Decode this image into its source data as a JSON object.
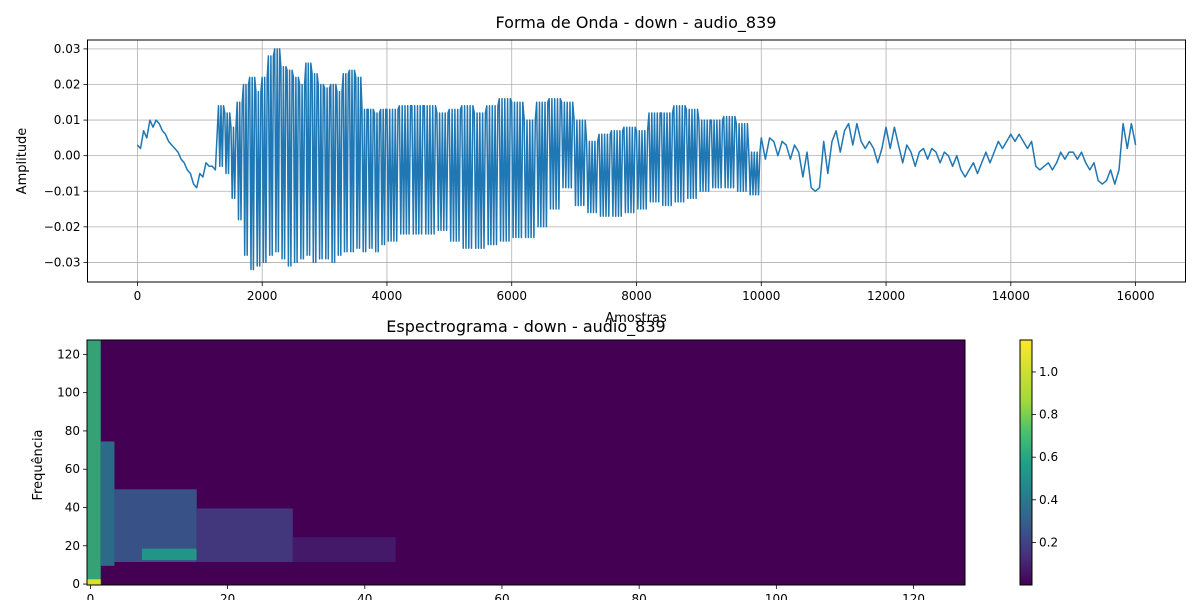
{
  "chart_data": [
    {
      "type": "line",
      "title": "Forma de Onda - down - audio_839",
      "xlabel": "Amostras",
      "ylabel": "Amplitude",
      "xlim": [
        -800,
        16800
      ],
      "ylim": [
        -0.0355,
        0.0325
      ],
      "grid": true,
      "line_color": "#1f77b4",
      "x_ticks": [
        0,
        2000,
        4000,
        6000,
        8000,
        10000,
        12000,
        14000,
        16000
      ],
      "x_tick_labels": [
        "0",
        "2000",
        "4000",
        "6000",
        "8000",
        "10000",
        "12000",
        "14000",
        "16000"
      ],
      "y_ticks": [
        -0.03,
        -0.02,
        -0.01,
        0.0,
        0.01,
        0.02,
        0.03
      ],
      "y_tick_labels": [
        "−0.03",
        "−0.02",
        "−0.01",
        "0.00",
        "0.01",
        "0.02",
        "0.03"
      ],
      "series": [
        {
          "x": [
            0,
            100,
            200,
            300,
            400,
            500,
            600,
            700,
            800,
            900,
            1000,
            1100,
            1200,
            1300,
            1400,
            1500,
            1600,
            1700,
            1800,
            1900,
            2000,
            2100,
            2200,
            2300,
            2400,
            2500,
            2600,
            2700,
            2800,
            2900,
            3000,
            3100,
            3200,
            3300,
            3400,
            3500,
            3600,
            3700,
            3800,
            3900,
            4000,
            4200,
            4400,
            4600,
            4800,
            5000,
            5200,
            5400,
            5600,
            5800,
            6000,
            6200,
            6400,
            6600,
            6800,
            7000,
            7200,
            7400,
            7600,
            7800,
            8000,
            8200,
            8400,
            8600,
            8800,
            9000,
            9200,
            9400,
            9600,
            9800,
            10000,
            10200,
            10400,
            10600,
            10800,
            11000,
            11200,
            11400,
            11600,
            11800,
            12000,
            12200,
            12400,
            12600,
            12800,
            13000,
            13200,
            13400,
            13600,
            13800,
            14000,
            14200,
            14400,
            14600,
            14800,
            15000,
            15200,
            15400,
            15600,
            15800,
            16000
          ],
          "min": [
            0.002,
            0.005,
            0.008,
            0.009,
            0.006,
            0.003,
            0.001,
            -0.002,
            -0.005,
            -0.009,
            -0.006,
            -0.003,
            -0.004,
            -0.003,
            -0.005,
            -0.012,
            -0.018,
            -0.028,
            -0.032,
            -0.031,
            -0.03,
            -0.028,
            -0.027,
            -0.029,
            -0.031,
            -0.03,
            -0.029,
            -0.028,
            -0.03,
            -0.029,
            -0.029,
            -0.03,
            -0.028,
            -0.027,
            -0.027,
            -0.026,
            -0.027,
            -0.026,
            -0.027,
            -0.025,
            -0.024,
            -0.022,
            -0.022,
            -0.022,
            -0.021,
            -0.024,
            -0.026,
            -0.026,
            -0.025,
            -0.024,
            -0.023,
            -0.023,
            -0.02,
            -0.015,
            -0.009,
            -0.014,
            -0.016,
            -0.017,
            -0.017,
            -0.016,
            -0.015,
            -0.013,
            -0.014,
            -0.013,
            -0.012,
            -0.01,
            -0.009,
            -0.009,
            -0.01,
            -0.011,
            -0.001,
            0.0,
            -0.001,
            -0.006,
            -0.01,
            -0.005,
            0.001,
            0.003,
            0.002,
            -0.002,
            0.002,
            -0.002,
            -0.003,
            -0.001,
            -0.002,
            -0.003,
            -0.006,
            -0.005,
            -0.002,
            0.002,
            0.004,
            0.002,
            -0.004,
            -0.004,
            -0.001,
            -0.001,
            -0.004,
            -0.008,
            -0.008,
            0.002,
            0.001
          ],
          "max": [
            0.003,
            0.007,
            0.01,
            0.01,
            0.007,
            0.004,
            0.002,
            -0.001,
            -0.004,
            -0.008,
            -0.005,
            -0.002,
            -0.003,
            0.014,
            0.012,
            0.008,
            0.015,
            0.02,
            0.022,
            0.018,
            0.022,
            0.028,
            0.03,
            0.025,
            0.024,
            0.022,
            0.02,
            0.026,
            0.023,
            0.02,
            0.019,
            0.02,
            0.018,
            0.023,
            0.024,
            0.022,
            0.013,
            0.013,
            0.012,
            0.013,
            0.013,
            0.014,
            0.014,
            0.014,
            0.012,
            0.013,
            0.014,
            0.012,
            0.014,
            0.016,
            0.015,
            0.01,
            0.015,
            0.016,
            0.015,
            0.01,
            0.004,
            0.006,
            0.007,
            0.008,
            0.007,
            0.012,
            0.012,
            0.014,
            0.013,
            0.01,
            0.01,
            0.011,
            0.009,
            0.001,
            0.005,
            0.004,
            0.003,
            0.001,
            -0.009,
            0.004,
            0.007,
            0.009,
            0.004,
            0.002,
            0.008,
            0.003,
            0.001,
            0.002,
            0.001,
            0.0,
            -0.004,
            -0.002,
            0.001,
            0.004,
            0.006,
            0.004,
            -0.003,
            -0.002,
            0.001,
            0.001,
            -0.002,
            -0.007,
            -0.004,
            0.009,
            0.003
          ]
        }
      ]
    },
    {
      "type": "heatmap",
      "title": "Espectrograma - down - audio_839",
      "xlabel": "",
      "ylabel": "Frequência",
      "xlim": [
        0,
        128
      ],
      "ylim": [
        0,
        128
      ],
      "x_ticks": [
        0,
        20,
        40,
        60,
        80,
        100,
        120
      ],
      "x_tick_labels": [
        "0",
        "20",
        "40",
        "60",
        "80",
        "100",
        "120"
      ],
      "y_ticks": [
        0,
        20,
        40,
        60,
        80,
        100,
        120
      ],
      "y_tick_labels": [
        "0",
        "20",
        "40",
        "60",
        "80",
        "100",
        "120"
      ],
      "colormap": "viridis",
      "colorbar": {
        "min": 0.0,
        "max": 1.15,
        "ticks": [
          0.2,
          0.4,
          0.6,
          0.8,
          1.0
        ],
        "tick_labels": [
          "0.2",
          "0.4",
          "0.6",
          "0.8",
          "1.0"
        ]
      },
      "regions": [
        {
          "x": [
            0,
            2
          ],
          "y": [
            0,
            128
          ],
          "value": 0.65
        },
        {
          "x": [
            0,
            2
          ],
          "y": [
            0,
            3
          ],
          "value": 1.1
        },
        {
          "x": [
            2,
            4
          ],
          "y": [
            10,
            75
          ],
          "value": 0.4
        },
        {
          "x": [
            4,
            16
          ],
          "y": [
            12,
            50
          ],
          "value": 0.28
        },
        {
          "x": [
            8,
            16
          ],
          "y": [
            13,
            19
          ],
          "value": 0.55
        },
        {
          "x": [
            16,
            30
          ],
          "y": [
            12,
            40
          ],
          "value": 0.18
        },
        {
          "x": [
            30,
            45
          ],
          "y": [
            12,
            25
          ],
          "value": 0.08
        }
      ]
    }
  ]
}
